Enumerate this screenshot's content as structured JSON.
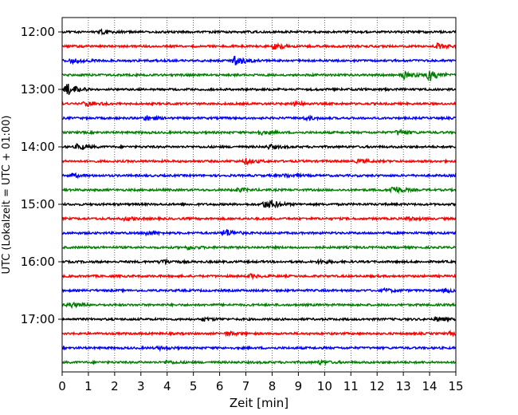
{
  "chart_data": {
    "type": "line",
    "title": "",
    "xlabel": "Zeit  [min]",
    "ylabel": "UTC (Lokalzeit = UTC + 01:00)",
    "xlim": [
      0,
      15
    ],
    "x_ticks": [
      "0",
      "1",
      "2",
      "3",
      "4",
      "5",
      "6",
      "7",
      "8",
      "9",
      "10",
      "11",
      "12",
      "13",
      "14",
      "15"
    ],
    "y_ticks": [
      "12:00",
      "13:00",
      "14:00",
      "15:00",
      "16:00",
      "17:00"
    ],
    "grid": "vertical-dotted",
    "trace_start_hour": "12:00",
    "trace_interval_min": 15,
    "trace_count": 24,
    "trace_colors": [
      "#000000",
      "#ff0000",
      "#0000ff",
      "#008000"
    ],
    "traces": [
      {
        "start": "12:00",
        "color": "#000000",
        "events": [
          {
            "t": 1.5,
            "amp": 2.0
          }
        ]
      },
      {
        "start": "12:15",
        "color": "#ff0000",
        "events": [
          {
            "t": 8.1,
            "amp": 3.5
          },
          {
            "t": 14.3,
            "amp": 3.0
          }
        ]
      },
      {
        "start": "12:30",
        "color": "#0000ff",
        "events": [
          {
            "t": 0.4,
            "amp": 3.0
          },
          {
            "t": 6.6,
            "amp": 6.0
          }
        ]
      },
      {
        "start": "12:45",
        "color": "#008000",
        "events": [
          {
            "t": 13.0,
            "amp": 5.0
          },
          {
            "t": 14.0,
            "amp": 7.0
          }
        ]
      },
      {
        "start": "13:00",
        "color": "#000000",
        "events": [
          {
            "t": 0.2,
            "amp": 8.0
          }
        ]
      },
      {
        "start": "13:15",
        "color": "#ff0000",
        "events": [
          {
            "t": 0.9,
            "amp": 3.0
          },
          {
            "t": 8.8,
            "amp": 2.5
          }
        ]
      },
      {
        "start": "13:30",
        "color": "#0000ff",
        "events": [
          {
            "t": 3.2,
            "amp": 3.0
          },
          {
            "t": 9.3,
            "amp": 2.0
          }
        ]
      },
      {
        "start": "13:45",
        "color": "#008000",
        "events": [
          {
            "t": 7.5,
            "amp": 2.5
          },
          {
            "t": 12.8,
            "amp": 3.0
          }
        ]
      },
      {
        "start": "14:00",
        "color": "#000000",
        "events": [
          {
            "t": 0.6,
            "amp": 3.5
          },
          {
            "t": 7.9,
            "amp": 2.5
          }
        ]
      },
      {
        "start": "14:15",
        "color": "#ff0000",
        "events": [
          {
            "t": 7.0,
            "amp": 3.0
          },
          {
            "t": 11.3,
            "amp": 2.0
          }
        ]
      },
      {
        "start": "14:30",
        "color": "#0000ff",
        "events": [
          {
            "t": 0.4,
            "amp": 2.0
          },
          {
            "t": 8.5,
            "amp": 2.0
          }
        ]
      },
      {
        "start": "14:45",
        "color": "#008000",
        "events": [
          {
            "t": 6.7,
            "amp": 2.0
          },
          {
            "t": 12.6,
            "amp": 5.5
          }
        ]
      },
      {
        "start": "15:00",
        "color": "#000000",
        "events": [
          {
            "t": 7.7,
            "amp": 4.0
          },
          {
            "t": 8.0,
            "amp": 3.0
          }
        ]
      },
      {
        "start": "15:15",
        "color": "#ff0000",
        "events": [
          {
            "t": 2.4,
            "amp": 2.0
          },
          {
            "t": 13.2,
            "amp": 2.0
          }
        ]
      },
      {
        "start": "15:30",
        "color": "#0000ff",
        "events": [
          {
            "t": 3.2,
            "amp": 2.5
          },
          {
            "t": 6.2,
            "amp": 5.0
          }
        ]
      },
      {
        "start": "15:45",
        "color": "#008000",
        "events": [
          {
            "t": 4.8,
            "amp": 2.0
          }
        ]
      },
      {
        "start": "16:00",
        "color": "#000000",
        "events": [
          {
            "t": 3.8,
            "amp": 3.0
          },
          {
            "t": 9.8,
            "amp": 2.0
          }
        ]
      },
      {
        "start": "16:15",
        "color": "#ff0000",
        "events": [
          {
            "t": 7.2,
            "amp": 2.0
          }
        ]
      },
      {
        "start": "16:30",
        "color": "#0000ff",
        "events": [
          {
            "t": 12.3,
            "amp": 2.0
          },
          {
            "t": 14.6,
            "amp": 2.0
          }
        ]
      },
      {
        "start": "16:45",
        "color": "#008000",
        "events": [
          {
            "t": 0.3,
            "amp": 3.0
          }
        ]
      },
      {
        "start": "17:00",
        "color": "#000000",
        "events": [
          {
            "t": 5.4,
            "amp": 2.0
          },
          {
            "t": 14.3,
            "amp": 2.0
          }
        ]
      },
      {
        "start": "17:15",
        "color": "#ff0000",
        "events": [
          {
            "t": 6.3,
            "amp": 2.0
          },
          {
            "t": 14.8,
            "amp": 1.5
          }
        ]
      },
      {
        "start": "17:30",
        "color": "#0000ff",
        "events": [
          {
            "t": 3.7,
            "amp": 1.5
          }
        ]
      },
      {
        "start": "17:45",
        "color": "#008000",
        "events": [
          {
            "t": 4.0,
            "amp": 1.5
          },
          {
            "t": 9.8,
            "amp": 2.0
          }
        ]
      }
    ]
  }
}
